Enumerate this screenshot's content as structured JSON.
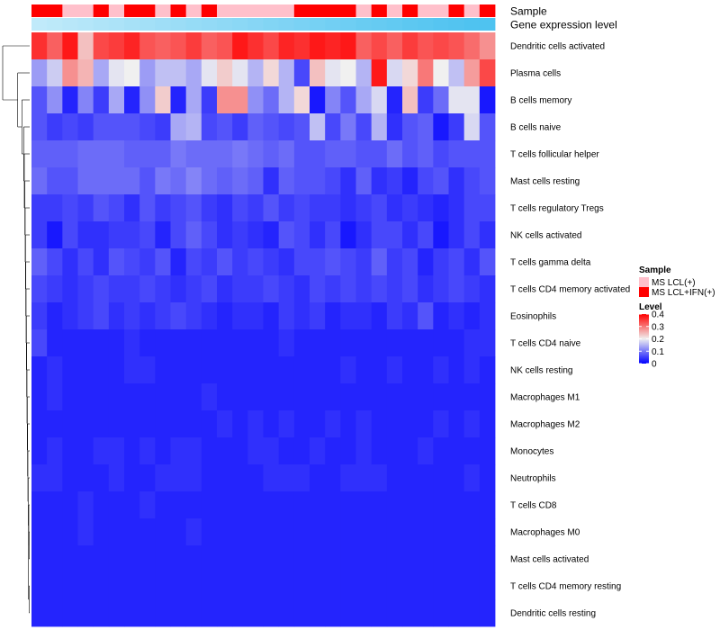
{
  "chart_data": {
    "type": "heatmap",
    "title": "",
    "annotation_labels": {
      "sample": "Sample",
      "gene_expression": "Gene expression level"
    },
    "row_labels": [
      "Dendritic cells activated",
      "Plasma cells",
      "B cells memory",
      "B cells naive",
      "T cells follicular helper",
      "Mast cells resting",
      "T cells regulatory  Tregs",
      "NK cells activated",
      "T cells gamma delta",
      "T cells CD4 memory activated",
      "Eosinophils",
      "T cells CD4 naive",
      "NK cells resting",
      "Macrophages M1",
      "Macrophages M2",
      "Monocytes",
      "Neutrophils",
      "T cells CD8",
      "Macrophages M0",
      "Mast cells activated",
      "T cells CD4 memory resting",
      "Dendritic cells resting"
    ],
    "n_columns": 30,
    "sample_groups": [
      "MS LCL+IFN(+)",
      "MS LCL+IFN(+)",
      "MS LCL(+)",
      "MS LCL(+)",
      "MS LCL+IFN(+)",
      "MS LCL(+)",
      "MS LCL+IFN(+)",
      "MS LCL+IFN(+)",
      "MS LCL(+)",
      "MS LCL+IFN(+)",
      "MS LCL(+)",
      "MS LCL+IFN(+)",
      "MS LCL(+)",
      "MS LCL(+)",
      "MS LCL(+)",
      "MS LCL(+)",
      "MS LCL(+)",
      "MS LCL+IFN(+)",
      "MS LCL+IFN(+)",
      "MS LCL+IFN(+)",
      "MS LCL+IFN(+)",
      "MS LCL(+)",
      "MS LCL+IFN(+)",
      "MS LCL(+)",
      "MS LCL+IFN(+)",
      "MS LCL(+)",
      "MS LCL(+)",
      "MS LCL+IFN(+)",
      "MS LCL(+)",
      "MS LCL+IFN(+)"
    ],
    "gene_expression_levels": [
      0.05,
      0.08,
      0.12,
      0.15,
      0.19,
      0.22,
      0.26,
      0.29,
      0.33,
      0.36,
      0.4,
      0.43,
      0.46,
      0.5,
      0.53,
      0.57,
      0.6,
      0.64,
      0.67,
      0.71,
      0.74,
      0.78,
      0.81,
      0.84,
      0.88,
      0.91,
      0.94,
      0.97,
      1.0,
      1.0
    ],
    "gene_expression_scale": {
      "low": "#c6ecfa",
      "high": "#4fc3f0"
    },
    "values": [
      [
        0.36,
        0.32,
        0.38,
        0.24,
        0.34,
        0.35,
        0.37,
        0.33,
        0.32,
        0.33,
        0.35,
        0.32,
        0.33,
        0.38,
        0.36,
        0.34,
        0.37,
        0.36,
        0.38,
        0.37,
        0.38,
        0.32,
        0.34,
        0.32,
        0.35,
        0.33,
        0.34,
        0.33,
        0.31,
        0.28
      ],
      [
        0.13,
        0.17,
        0.28,
        0.25,
        0.14,
        0.19,
        0.2,
        0.13,
        0.16,
        0.16,
        0.14,
        0.19,
        0.23,
        0.19,
        0.15,
        0.22,
        0.15,
        0.06,
        0.24,
        0.19,
        0.2,
        0.15,
        0.38,
        0.18,
        0.22,
        0.3,
        0.2,
        0.16,
        0.27,
        0.34
      ],
      [
        0.07,
        0.12,
        0.03,
        0.11,
        0.05,
        0.14,
        0.03,
        0.12,
        0.23,
        0.03,
        0.14,
        0.05,
        0.28,
        0.28,
        0.12,
        0.09,
        0.15,
        0.22,
        0.02,
        0.11,
        0.07,
        0.14,
        0.18,
        0.03,
        0.24,
        0.05,
        0.09,
        0.19,
        0.19,
        0.02
      ],
      [
        0.07,
        0.05,
        0.06,
        0.05,
        0.07,
        0.07,
        0.07,
        0.06,
        0.05,
        0.14,
        0.15,
        0.06,
        0.07,
        0.05,
        0.08,
        0.07,
        0.06,
        0.07,
        0.16,
        0.06,
        0.1,
        0.06,
        0.15,
        0.04,
        0.07,
        0.08,
        0.02,
        0.05,
        0.18,
        0.07
      ],
      [
        0.08,
        0.08,
        0.08,
        0.09,
        0.09,
        0.09,
        0.08,
        0.08,
        0.08,
        0.1,
        0.09,
        0.09,
        0.09,
        0.1,
        0.09,
        0.08,
        0.09,
        0.07,
        0.07,
        0.08,
        0.08,
        0.07,
        0.07,
        0.09,
        0.07,
        0.08,
        0.06,
        0.07,
        0.07,
        0.07
      ],
      [
        0.09,
        0.07,
        0.07,
        0.09,
        0.09,
        0.09,
        0.09,
        0.07,
        0.1,
        0.09,
        0.11,
        0.09,
        0.08,
        0.09,
        0.08,
        0.04,
        0.08,
        0.07,
        0.07,
        0.06,
        0.04,
        0.08,
        0.04,
        0.05,
        0.03,
        0.06,
        0.07,
        0.04,
        0.06,
        0.07
      ],
      [
        0.05,
        0.05,
        0.06,
        0.05,
        0.07,
        0.06,
        0.04,
        0.07,
        0.05,
        0.06,
        0.07,
        0.05,
        0.04,
        0.06,
        0.05,
        0.07,
        0.05,
        0.06,
        0.05,
        0.05,
        0.04,
        0.05,
        0.06,
        0.04,
        0.05,
        0.04,
        0.03,
        0.04,
        0.06,
        0.06
      ],
      [
        0.05,
        0.02,
        0.06,
        0.04,
        0.04,
        0.05,
        0.05,
        0.06,
        0.03,
        0.06,
        0.08,
        0.06,
        0.04,
        0.05,
        0.04,
        0.03,
        0.07,
        0.06,
        0.04,
        0.06,
        0.02,
        0.04,
        0.06,
        0.06,
        0.04,
        0.06,
        0.02,
        0.04,
        0.06,
        0.04
      ],
      [
        0.08,
        0.06,
        0.04,
        0.06,
        0.04,
        0.07,
        0.06,
        0.05,
        0.07,
        0.03,
        0.06,
        0.05,
        0.07,
        0.05,
        0.06,
        0.05,
        0.04,
        0.06,
        0.06,
        0.07,
        0.06,
        0.05,
        0.08,
        0.05,
        0.06,
        0.03,
        0.05,
        0.06,
        0.04,
        0.07
      ],
      [
        0.06,
        0.05,
        0.04,
        0.05,
        0.06,
        0.05,
        0.05,
        0.06,
        0.05,
        0.04,
        0.05,
        0.06,
        0.04,
        0.05,
        0.05,
        0.06,
        0.05,
        0.04,
        0.06,
        0.05,
        0.06,
        0.05,
        0.06,
        0.05,
        0.06,
        0.04,
        0.05,
        0.06,
        0.05,
        0.04
      ],
      [
        0.05,
        0.03,
        0.04,
        0.05,
        0.06,
        0.04,
        0.05,
        0.04,
        0.05,
        0.06,
        0.05,
        0.04,
        0.03,
        0.04,
        0.04,
        0.03,
        0.05,
        0.04,
        0.05,
        0.03,
        0.04,
        0.04,
        0.03,
        0.05,
        0.04,
        0.07,
        0.03,
        0.04,
        0.03,
        0.04
      ],
      [
        0.06,
        0.03,
        0.03,
        0.03,
        0.03,
        0.03,
        0.04,
        0.03,
        0.03,
        0.03,
        0.03,
        0.03,
        0.03,
        0.03,
        0.03,
        0.03,
        0.04,
        0.03,
        0.03,
        0.03,
        0.03,
        0.03,
        0.03,
        0.03,
        0.03,
        0.03,
        0.03,
        0.03,
        0.04,
        0.04
      ],
      [
        0.03,
        0.04,
        0.03,
        0.03,
        0.03,
        0.03,
        0.04,
        0.04,
        0.03,
        0.03,
        0.03,
        0.03,
        0.03,
        0.03,
        0.03,
        0.03,
        0.03,
        0.03,
        0.03,
        0.03,
        0.04,
        0.03,
        0.03,
        0.04,
        0.03,
        0.03,
        0.04,
        0.03,
        0.04,
        0.03
      ],
      [
        0.03,
        0.04,
        0.03,
        0.03,
        0.03,
        0.03,
        0.03,
        0.03,
        0.03,
        0.03,
        0.03,
        0.04,
        0.03,
        0.03,
        0.03,
        0.03,
        0.03,
        0.03,
        0.03,
        0.03,
        0.03,
        0.03,
        0.03,
        0.03,
        0.03,
        0.03,
        0.03,
        0.03,
        0.03,
        0.03
      ],
      [
        0.03,
        0.03,
        0.03,
        0.03,
        0.03,
        0.03,
        0.03,
        0.03,
        0.03,
        0.03,
        0.03,
        0.03,
        0.04,
        0.03,
        0.04,
        0.03,
        0.04,
        0.03,
        0.03,
        0.04,
        0.03,
        0.04,
        0.03,
        0.03,
        0.03,
        0.03,
        0.04,
        0.03,
        0.04,
        0.03
      ],
      [
        0.03,
        0.04,
        0.03,
        0.03,
        0.04,
        0.04,
        0.03,
        0.04,
        0.03,
        0.04,
        0.04,
        0.03,
        0.03,
        0.03,
        0.04,
        0.04,
        0.03,
        0.03,
        0.04,
        0.03,
        0.03,
        0.04,
        0.03,
        0.03,
        0.03,
        0.04,
        0.03,
        0.03,
        0.03,
        0.03
      ],
      [
        0.04,
        0.04,
        0.03,
        0.03,
        0.03,
        0.04,
        0.03,
        0.03,
        0.04,
        0.04,
        0.04,
        0.03,
        0.03,
        0.03,
        0.03,
        0.04,
        0.04,
        0.04,
        0.03,
        0.03,
        0.04,
        0.04,
        0.04,
        0.03,
        0.03,
        0.03,
        0.03,
        0.03,
        0.04,
        0.03
      ],
      [
        0.03,
        0.03,
        0.03,
        0.04,
        0.03,
        0.03,
        0.03,
        0.04,
        0.03,
        0.03,
        0.03,
        0.03,
        0.03,
        0.03,
        0.03,
        0.03,
        0.03,
        0.03,
        0.03,
        0.03,
        0.03,
        0.03,
        0.03,
        0.03,
        0.03,
        0.03,
        0.03,
        0.03,
        0.03,
        0.03
      ],
      [
        0.03,
        0.03,
        0.03,
        0.04,
        0.03,
        0.03,
        0.03,
        0.03,
        0.03,
        0.03,
        0.04,
        0.03,
        0.03,
        0.03,
        0.03,
        0.03,
        0.03,
        0.03,
        0.03,
        0.03,
        0.03,
        0.03,
        0.03,
        0.03,
        0.03,
        0.03,
        0.03,
        0.03,
        0.03,
        0.03
      ],
      [
        0.03,
        0.03,
        0.03,
        0.03,
        0.03,
        0.03,
        0.03,
        0.03,
        0.03,
        0.03,
        0.03,
        0.03,
        0.03,
        0.03,
        0.03,
        0.03,
        0.03,
        0.03,
        0.03,
        0.03,
        0.03,
        0.03,
        0.03,
        0.03,
        0.03,
        0.03,
        0.03,
        0.03,
        0.03,
        0.03
      ],
      [
        0.03,
        0.03,
        0.03,
        0.03,
        0.03,
        0.03,
        0.03,
        0.03,
        0.03,
        0.03,
        0.03,
        0.03,
        0.03,
        0.03,
        0.03,
        0.03,
        0.03,
        0.03,
        0.03,
        0.03,
        0.03,
        0.03,
        0.03,
        0.03,
        0.03,
        0.03,
        0.03,
        0.03,
        0.03,
        0.03
      ],
      [
        0.03,
        0.03,
        0.03,
        0.03,
        0.03,
        0.03,
        0.03,
        0.03,
        0.03,
        0.03,
        0.03,
        0.03,
        0.03,
        0.03,
        0.03,
        0.03,
        0.03,
        0.03,
        0.03,
        0.03,
        0.03,
        0.03,
        0.03,
        0.03,
        0.03,
        0.03,
        0.03,
        0.03,
        0.03,
        0.03
      ]
    ],
    "color_scale": {
      "min": 0,
      "mid": 0.2,
      "max": 0.4,
      "low_color": "#0000ff",
      "mid_color": "#f0f0f0",
      "high_color": "#ff0000"
    },
    "legend": {
      "sample": {
        "title": "Sample",
        "entries": [
          {
            "label": "MS LCL(+)",
            "color": "#ffc0cb"
          },
          {
            "label": "MS LCL+IFN(+)",
            "color": "#ff0000"
          }
        ]
      },
      "level": {
        "title": "Level",
        "ticks": [
          "0.4",
          "0.3",
          "0.2",
          "0.1",
          "0"
        ],
        "tick_values": [
          0.4,
          0.3,
          0.2,
          0.1,
          0
        ]
      }
    },
    "dendrogram_merges": [
      [
        19,
        20
      ],
      [
        21,
        22
      ],
      [
        18,
        -1
      ],
      [
        -2,
        -3
      ],
      [
        17,
        -3
      ],
      [
        16,
        -5
      ],
      [
        15,
        -6
      ],
      [
        14,
        -7
      ],
      [
        13,
        -8
      ],
      [
        12,
        -9
      ],
      [
        11,
        -10
      ],
      [
        10,
        -11
      ],
      [
        9,
        -12
      ],
      [
        8,
        -13
      ],
      [
        7,
        -14
      ],
      [
        6,
        -15
      ],
      [
        5,
        -16
      ],
      [
        4,
        -17
      ],
      [
        3,
        -18
      ],
      [
        2,
        -19
      ],
      [
        1,
        -20
      ]
    ],
    "dendrogram_heights": [
      0.01,
      0.01,
      0.015,
      0.02,
      0.025,
      0.03,
      0.035,
      0.04,
      0.045,
      0.05,
      0.055,
      0.06,
      0.065,
      0.07,
      0.075,
      0.08,
      0.09,
      0.1,
      0.13,
      0.2,
      0.45
    ]
  }
}
